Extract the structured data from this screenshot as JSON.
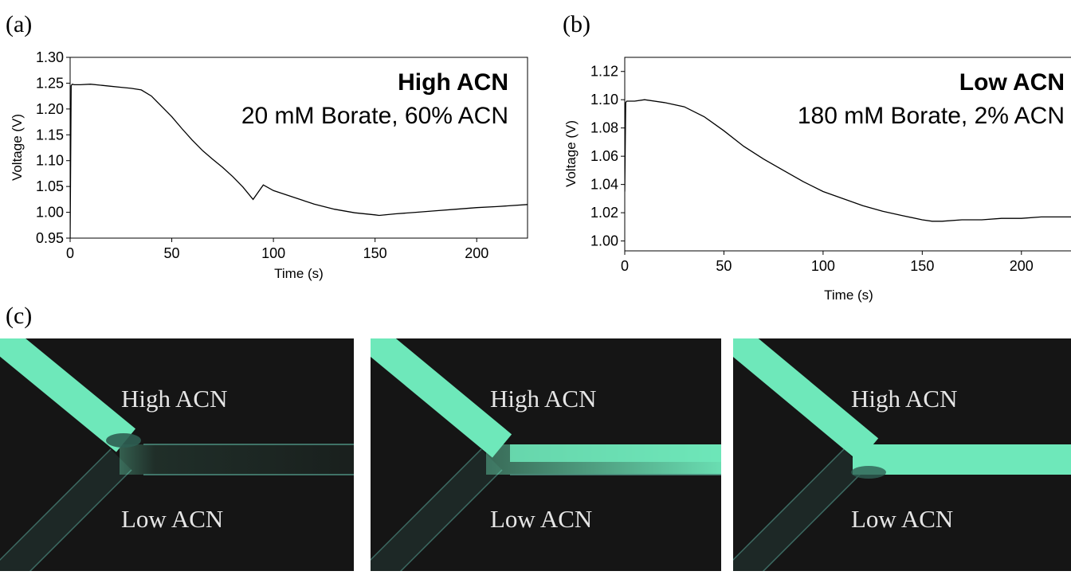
{
  "panels": {
    "a": "(a)",
    "b": "(b)",
    "c": "(c)"
  },
  "chart_data": [
    {
      "type": "line",
      "xlabel": "Time (s)",
      "ylabel": "Voltage (V)",
      "xlim": [
        0,
        225
      ],
      "ylim": [
        0.95,
        1.3
      ],
      "xticks": [
        0,
        50,
        100,
        150,
        200
      ],
      "yticks": [
        0.95,
        1.0,
        1.05,
        1.1,
        1.15,
        1.2,
        1.25,
        1.3
      ],
      "ytick_decimals": 2,
      "annotation_bold": "High ACN",
      "annotation": "20 mM Borate, 60% ACN",
      "grid": false,
      "series": [
        {
          "x": [
            0,
            0.5,
            1,
            2,
            5,
            10,
            15,
            20,
            25,
            30,
            35,
            40,
            45,
            50,
            55,
            60,
            65,
            70,
            75,
            80,
            85,
            90,
            95,
            100,
            110,
            120,
            130,
            140,
            150,
            152,
            160,
            170,
            180,
            190,
            200,
            210,
            225
          ],
          "y": [
            0.95,
            1.245,
            1.248,
            1.247,
            1.247,
            1.248,
            1.246,
            1.244,
            1.242,
            1.24,
            1.237,
            1.225,
            1.205,
            1.185,
            1.162,
            1.14,
            1.12,
            1.103,
            1.087,
            1.069,
            1.049,
            1.025,
            1.053,
            1.042,
            1.029,
            1.016,
            1.006,
            0.999,
            0.995,
            0.994,
            0.997,
            1.0,
            1.003,
            1.006,
            1.009,
            1.011,
            1.015
          ]
        }
      ]
    },
    {
      "type": "line",
      "xlabel": "Time (s)",
      "ylabel": "Voltage (V)",
      "xlim": [
        0,
        225
      ],
      "ylim": [
        0.993,
        1.13
      ],
      "xticks": [
        0,
        50,
        100,
        150,
        200
      ],
      "yticks": [
        1.0,
        1.02,
        1.04,
        1.06,
        1.08,
        1.1,
        1.12
      ],
      "ytick_decimals": 2,
      "annotation_bold": "Low ACN",
      "annotation": "180 mM Borate, 2% ACN",
      "grid": false,
      "series": [
        {
          "x": [
            0,
            0.5,
            1,
            5,
            10,
            20,
            30,
            40,
            50,
            60,
            70,
            80,
            90,
            100,
            110,
            120,
            130,
            140,
            150,
            155,
            160,
            170,
            180,
            190,
            200,
            210,
            225
          ],
          "y": [
            1.035,
            1.098,
            1.099,
            1.099,
            1.1,
            1.098,
            1.095,
            1.088,
            1.078,
            1.067,
            1.058,
            1.05,
            1.042,
            1.035,
            1.03,
            1.025,
            1.021,
            1.018,
            1.015,
            1.014,
            1.014,
            1.015,
            1.015,
            1.016,
            1.016,
            1.017,
            1.017
          ]
        }
      ]
    }
  ],
  "images": [
    {
      "top_label": "High ACN",
      "bottom_label": "Low ACN"
    },
    {
      "top_label": "High ACN",
      "bottom_label": "Low ACN"
    },
    {
      "top_label": "High ACN",
      "bottom_label": "Low ACN"
    }
  ],
  "colors": {
    "background_dark": "#151515",
    "fluorescence": "#6ee8ba",
    "channel_edge": "#3d6b63"
  }
}
